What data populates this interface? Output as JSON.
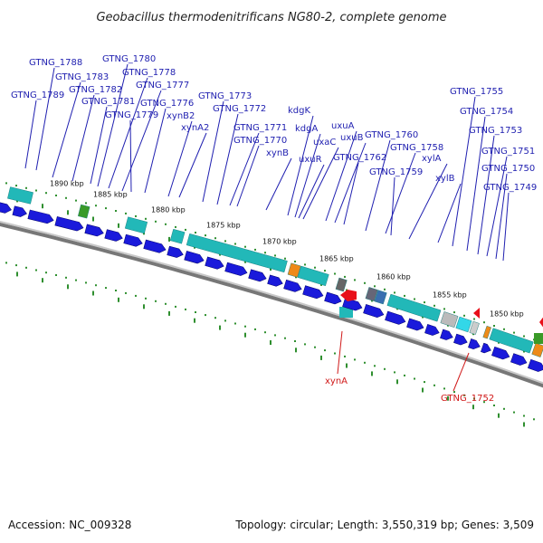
{
  "title": "Geobacillus thermodenitrificans NG80-2, complete genome",
  "footer": {
    "accession": "Accession: NC_009328",
    "summary": "Topology: circular; Length: 3,550,319 bp; Genes: 3,509"
  },
  "colors": {
    "forward_gene": "#1a1adb",
    "reverse_gene": "#e8101a",
    "label_forward": "#1f1fb0",
    "label_reverse": "#d01818",
    "ribbon": "#999999",
    "tick": "#2f8f2f",
    "cds_box": "#22b8b8",
    "orange_box": "#ee8a18",
    "green_box": "#3a9a28"
  },
  "ticks": [
    "1890 kbp",
    "1885 kbp",
    "1880 kbp",
    "1875 kbp",
    "1870 kbp",
    "1865 kbp",
    "1860 kbp",
    "1855 kbp",
    "1850 kbp"
  ],
  "labels": [
    {
      "text": "GTNG_1788",
      "strand": "forward"
    },
    {
      "text": "GTNG_1783",
      "strand": "forward"
    },
    {
      "text": "GTNG_1782",
      "strand": "forward"
    },
    {
      "text": "GTNG_1789",
      "strand": "forward"
    },
    {
      "text": "GTNG_1781",
      "strand": "forward"
    },
    {
      "text": "GTNG_1780",
      "strand": "forward"
    },
    {
      "text": "GTNG_1778",
      "strand": "forward"
    },
    {
      "text": "GTNG_1777",
      "strand": "forward"
    },
    {
      "text": "GTNG_1779",
      "strand": "forward"
    },
    {
      "text": "GTNG_1776",
      "strand": "forward"
    },
    {
      "text": "xynB2",
      "strand": "forward"
    },
    {
      "text": "xynA2",
      "strand": "forward"
    },
    {
      "text": "GTNG_1773",
      "strand": "forward"
    },
    {
      "text": "GTNG_1772",
      "strand": "forward"
    },
    {
      "text": "GTNG_1771",
      "strand": "forward"
    },
    {
      "text": "GTNG_1770",
      "strand": "forward"
    },
    {
      "text": "xynB",
      "strand": "forward"
    },
    {
      "text": "kdgK",
      "strand": "forward"
    },
    {
      "text": "kdgA",
      "strand": "forward"
    },
    {
      "text": "uxaC",
      "strand": "forward"
    },
    {
      "text": "uxuR",
      "strand": "forward"
    },
    {
      "text": "uxuA",
      "strand": "forward"
    },
    {
      "text": "uxuB",
      "strand": "forward"
    },
    {
      "text": "GTNG_1762",
      "strand": "forward"
    },
    {
      "text": "GTNG_1760",
      "strand": "forward"
    },
    {
      "text": "GTNG_1758",
      "strand": "forward"
    },
    {
      "text": "GTNG_1759",
      "strand": "forward"
    },
    {
      "text": "xylA",
      "strand": "forward"
    },
    {
      "text": "xylB",
      "strand": "forward"
    },
    {
      "text": "GTNG_1755",
      "strand": "forward"
    },
    {
      "text": "GTNG_1754",
      "strand": "forward"
    },
    {
      "text": "GTNG_1753",
      "strand": "forward"
    },
    {
      "text": "GTNG_1751",
      "strand": "forward"
    },
    {
      "text": "GTNG_1750",
      "strand": "forward"
    },
    {
      "text": "GTNG_1749",
      "strand": "forward"
    },
    {
      "text": "xynA",
      "strand": "reverse"
    },
    {
      "text": "GTNG_1752",
      "strand": "reverse"
    }
  ]
}
